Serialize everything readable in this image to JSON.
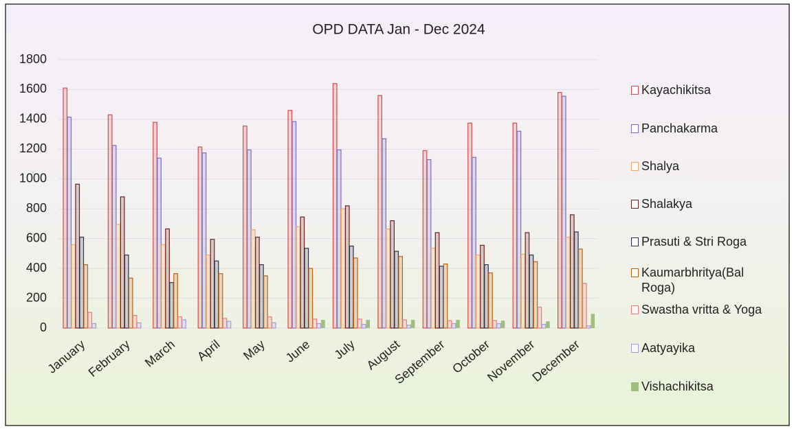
{
  "chart_data": {
    "type": "bar",
    "title": "OPD DATA Jan - Dec 2024",
    "categories": [
      "January",
      "February",
      "March",
      "April",
      "May",
      "June",
      "July",
      "August",
      "September",
      "October",
      "November",
      "December"
    ],
    "series": [
      {
        "name": "Kayachikitsa",
        "color": "#d94a4a",
        "values": [
          1610,
          1430,
          1380,
          1215,
          1355,
          1460,
          1640,
          1560,
          1190,
          1375,
          1375,
          1580
        ]
      },
      {
        "name": "Panchakarma",
        "color": "#7b6cc4",
        "values": [
          1415,
          1225,
          1140,
          1175,
          1195,
          1385,
          1195,
          1270,
          1130,
          1145,
          1320,
          1555
        ]
      },
      {
        "name": "Shalya",
        "color": "#f5a860",
        "values": [
          560,
          695,
          560,
          490,
          660,
          680,
          800,
          665,
          535,
          490,
          495,
          610
        ]
      },
      {
        "name": "Shalakya",
        "color": "#6e1e1e",
        "values": [
          965,
          880,
          665,
          595,
          610,
          745,
          820,
          720,
          640,
          555,
          640,
          760
        ]
      },
      {
        "name": "Prasuti & Stri Roga",
        "color": "#2e2e4e",
        "values": [
          610,
          490,
          305,
          450,
          425,
          535,
          550,
          515,
          415,
          425,
          490,
          645
        ]
      },
      {
        "name": "Kaumarbhritya(Bal Roga)",
        "color": "#c0600f",
        "values": [
          425,
          335,
          365,
          365,
          350,
          400,
          470,
          480,
          430,
          370,
          445,
          530
        ]
      },
      {
        "name": "Swastha vritta & Yoga",
        "color": "#ee7878",
        "values": [
          105,
          85,
          75,
          65,
          75,
          60,
          60,
          55,
          50,
          50,
          140,
          300
        ]
      },
      {
        "name": "Aatyayika",
        "color": "#a898dc",
        "values": [
          30,
          35,
          55,
          45,
          35,
          30,
          25,
          20,
          30,
          30,
          25,
          15
        ]
      },
      {
        "name": "Vishachikitsa",
        "color": "#9fbf7f",
        "values": [
          0,
          0,
          0,
          0,
          0,
          55,
          55,
          55,
          55,
          50,
          45,
          95
        ]
      }
    ],
    "ylim": [
      0,
      1800
    ],
    "yticks": [
      0,
      200,
      400,
      600,
      800,
      1000,
      1200,
      1400,
      1600,
      1800
    ],
    "grid": true,
    "legend": "right"
  }
}
